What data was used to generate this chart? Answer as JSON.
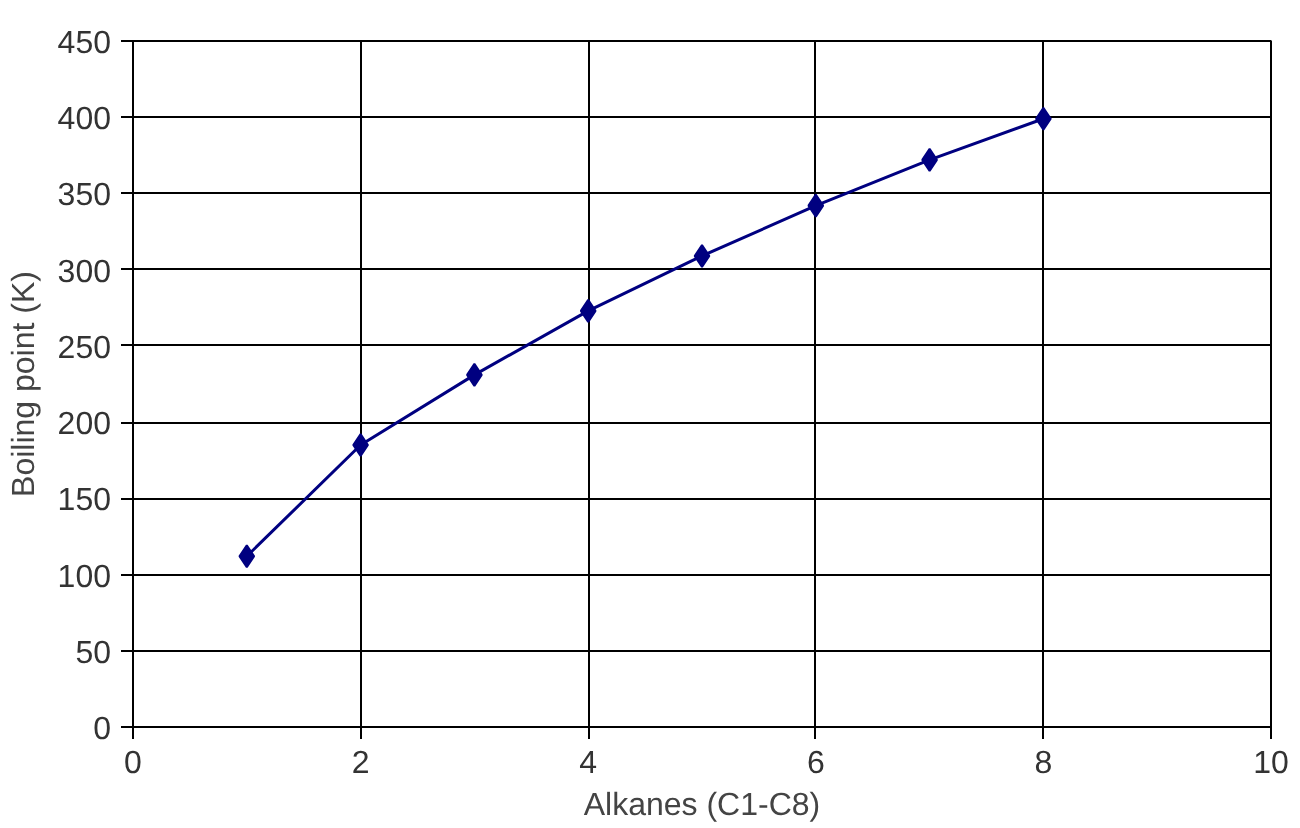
{
  "chart_data": {
    "type": "line",
    "xlabel": "Alkanes (C1-C8)",
    "ylabel": "Boiling point (K)",
    "x": [
      1,
      2,
      3,
      4,
      5,
      6,
      7,
      8
    ],
    "series": [
      {
        "color": "#000080",
        "values": [
          112,
          185,
          231,
          273,
          309,
          342,
          372,
          399
        ]
      }
    ],
    "xlim": [
      0,
      10
    ],
    "xticks": [
      0,
      2,
      4,
      6,
      8,
      10
    ],
    "ylim": [
      0,
      450
    ],
    "yticks": [
      0,
      50,
      100,
      150,
      200,
      250,
      300,
      350,
      400,
      450
    ],
    "grid": true,
    "marker": "diamond",
    "line_style": "solid"
  }
}
